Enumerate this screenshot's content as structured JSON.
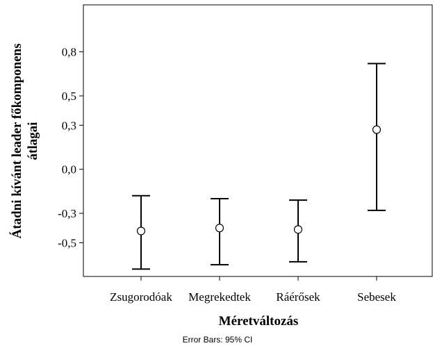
{
  "chart_data": {
    "type": "errorbar",
    "title": "",
    "xlabel": "Méretváltozás",
    "ylabel_lines": [
      "Átadni kívánt leader főkomponens",
      "átlagai"
    ],
    "categories": [
      "Zsugorodóak",
      "Megrekedtek",
      "Ráérősek",
      "Sebesek"
    ],
    "means": [
      -0.42,
      -0.4,
      -0.41,
      0.27
    ],
    "ci_lower": [
      -0.68,
      -0.65,
      -0.63,
      -0.28
    ],
    "ci_upper": [
      -0.18,
      -0.2,
      -0.21,
      0.72
    ],
    "ylim": [
      -0.73,
      1.12
    ],
    "yticks": [
      0.8,
      0.5,
      0.3,
      0.0,
      -0.3,
      -0.5
    ],
    "ytick_labels": [
      "0,8",
      "0,5",
      "0,3",
      "0,0",
      "-0,3",
      "-0,5"
    ],
    "grid": false,
    "marker": "open-circle"
  },
  "caption": "Error Bars: 95% CI",
  "colors": {
    "line": "#000000",
    "background": "#ffffff"
  }
}
